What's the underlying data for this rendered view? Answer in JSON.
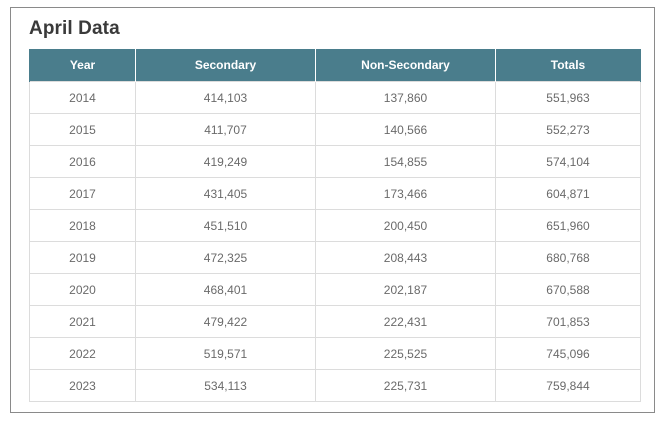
{
  "title": "April Data",
  "table": {
    "headers": [
      "Year",
      "Secondary",
      "Non-Secondary",
      "Totals"
    ],
    "rows": [
      [
        "2014",
        "414,103",
        "137,860",
        "551,963"
      ],
      [
        "2015",
        "411,707",
        "140,566",
        "552,273"
      ],
      [
        "2016",
        "419,249",
        "154,855",
        "574,104"
      ],
      [
        "2017",
        "431,405",
        "173,466",
        "604,871"
      ],
      [
        "2018",
        "451,510",
        "200,450",
        "651,960"
      ],
      [
        "2019",
        "472,325",
        "208,443",
        "680,768"
      ],
      [
        "2020",
        "468,401",
        "202,187",
        "670,588"
      ],
      [
        "2021",
        "479,422",
        "222,431",
        "701,853"
      ],
      [
        "2022",
        "519,571",
        "225,525",
        "745,096"
      ],
      [
        "2023",
        "534,113",
        "225,731",
        "759,844"
      ]
    ]
  },
  "colors": {
    "header_bg": "#4a7d8c",
    "header_text": "#ffffff",
    "cell_text": "#6a6a6a",
    "border": "#dcdcdc"
  }
}
